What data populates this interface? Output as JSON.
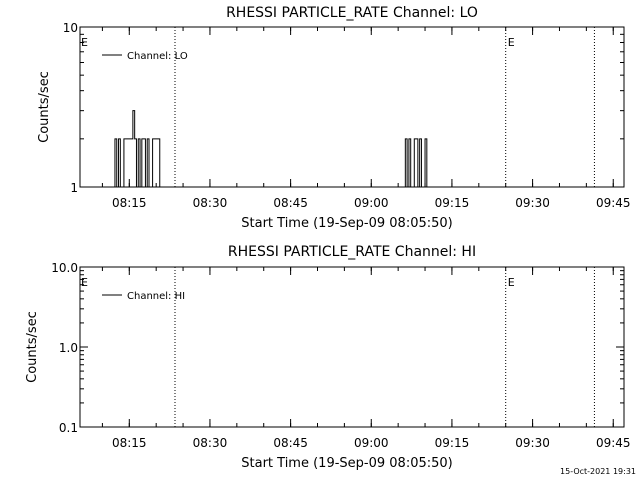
{
  "chart_data": [
    {
      "type": "line",
      "title": "RHESSI PARTICLE_RATE Channel: LO",
      "xlabel": "Start Time (19-Sep-09 08:05:50)",
      "ylabel": "Counts/sec",
      "y_scale": "log",
      "ylim": [
        1,
        10
      ],
      "ytick_labels": [
        "1",
        "10"
      ],
      "xlim": [
        "08:05:50",
        "09:47:00"
      ],
      "xtick_labels": [
        "08:15",
        "08:30",
        "08:45",
        "09:00",
        "09:15",
        "09:30",
        "09:45"
      ],
      "legend": {
        "placement": "top-left",
        "entries": [
          "Channel: LO"
        ]
      },
      "markers": [
        "E",
        "E"
      ],
      "vlines": [
        "08:23:30",
        "09:25:00",
        "09:41:30"
      ],
      "series": [
        {
          "name": "Channel: LO",
          "x": [
            "08:12:00",
            "08:12:20",
            "08:12:40",
            "08:13:00",
            "08:13:20",
            "08:13:40",
            "08:14:00",
            "08:14:20",
            "08:14:40",
            "08:15:00",
            "08:15:20",
            "08:15:40",
            "08:16:00",
            "08:16:20",
            "08:16:40",
            "08:17:00",
            "08:17:20",
            "08:17:40",
            "08:18:00",
            "08:18:20",
            "08:18:40",
            "08:19:00",
            "08:19:20",
            "08:19:40",
            "08:20:00",
            "08:20:20",
            "08:20:40",
            "08:21:00",
            "08:21:20",
            "08:21:40",
            "08:22:00",
            "08:22:20",
            "08:22:40",
            "09:06:00",
            "09:06:20",
            "09:06:40",
            "09:07:00",
            "09:07:20",
            "09:07:40",
            "09:08:00",
            "09:08:20",
            "09:08:40",
            "09:09:00",
            "09:09:20",
            "09:09:40",
            "09:10:00",
            "09:10:20",
            "09:10:40"
          ],
          "values": [
            1,
            2,
            1,
            2,
            1,
            1,
            2,
            2,
            2,
            2,
            2,
            3,
            2,
            1,
            2,
            1,
            2,
            2,
            1,
            2,
            1,
            1,
            2,
            2,
            2,
            2,
            1,
            1,
            1,
            1,
            1,
            1,
            1,
            1,
            2,
            1,
            2,
            1,
            1,
            2,
            2,
            1,
            2,
            1,
            1,
            2,
            1,
            1
          ]
        }
      ]
    },
    {
      "type": "line",
      "title": "RHESSI PARTICLE_RATE Channel: HI",
      "xlabel": "Start Time (19-Sep-09 08:05:50)",
      "ylabel": "Counts/sec",
      "y_scale": "log",
      "ylim": [
        0.1,
        10
      ],
      "ytick_labels": [
        "0.1",
        "1.0",
        "10.0"
      ],
      "xlim": [
        "08:05:50",
        "09:47:00"
      ],
      "xtick_labels": [
        "08:15",
        "08:30",
        "08:45",
        "09:00",
        "09:15",
        "09:30",
        "09:45"
      ],
      "legend": {
        "placement": "top-left",
        "entries": [
          "Channel: HI"
        ]
      },
      "markers": [
        "E",
        "E"
      ],
      "vlines": [
        "08:23:30",
        "09:25:00",
        "09:41:30"
      ],
      "series": [
        {
          "name": "Channel: HI",
          "x": [],
          "values": []
        }
      ]
    }
  ],
  "footer": {
    "timestamp": "15-Oct-2021 19:31"
  }
}
